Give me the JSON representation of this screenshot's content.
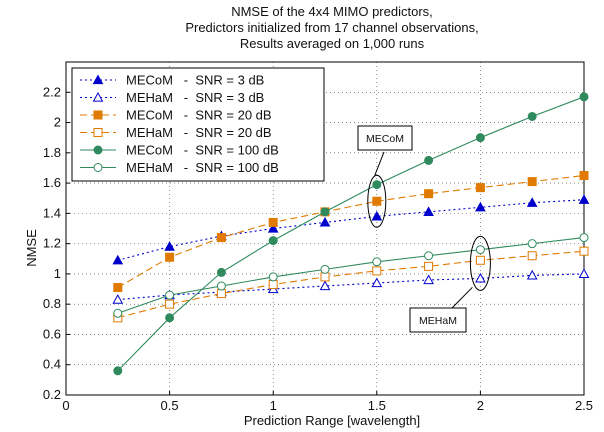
{
  "chart_data": {
    "type": "line",
    "title_lines": [
      "NMSE of the 4x4 MIMO predictors,",
      "Predictors initialized from 17 channel observations,",
      "Results averaged on 1,000 runs"
    ],
    "xlabel": "Prediction Range [wavelength]",
    "ylabel": "NMSE",
    "xlim": [
      0,
      2.5
    ],
    "ylim": [
      0.2,
      2.4
    ],
    "xticks": [
      "0",
      "0.5",
      "1",
      "1.5",
      "2",
      "2.5"
    ],
    "yticks": [
      "0.2",
      "0.4",
      "0.6",
      "0.8",
      "1",
      "1.2",
      "1.4",
      "1.6",
      "1.8",
      "2",
      "2.2"
    ],
    "grid": true,
    "legend_placement": "top-left",
    "x": [
      0.25,
      0.5,
      0.75,
      1.0,
      1.25,
      1.5,
      1.75,
      2.0,
      2.25,
      2.5
    ],
    "series": [
      {
        "name": "MECoM   -  SNR = 3 dB",
        "color": "#0000cc",
        "dash": "dotted",
        "marker": "triangle",
        "filled": true,
        "values": [
          1.09,
          1.18,
          1.25,
          1.3,
          1.34,
          1.38,
          1.41,
          1.44,
          1.47,
          1.49
        ]
      },
      {
        "name": "MEHaM   -  SNR = 3 dB",
        "color": "#0000cc",
        "dash": "dotted",
        "marker": "triangle",
        "filled": false,
        "values": [
          0.83,
          0.86,
          0.88,
          0.9,
          0.92,
          0.94,
          0.96,
          0.97,
          0.99,
          1.0
        ]
      },
      {
        "name": "MECoM   -  SNR = 20 dB",
        "color": "#e07b00",
        "dash": "dashed",
        "marker": "square",
        "filled": true,
        "values": [
          0.91,
          1.11,
          1.24,
          1.34,
          1.41,
          1.48,
          1.53,
          1.57,
          1.61,
          1.65
        ]
      },
      {
        "name": "MEHaM   -  SNR = 20 dB",
        "color": "#e07b00",
        "dash": "dashed",
        "marker": "square",
        "filled": false,
        "values": [
          0.71,
          0.8,
          0.87,
          0.93,
          0.98,
          1.02,
          1.05,
          1.09,
          1.12,
          1.15
        ]
      },
      {
        "name": "MECoM   -  SNR = 100 dB",
        "color": "#2f8a5e",
        "dash": "solid",
        "marker": "circle",
        "filled": true,
        "values": [
          0.36,
          0.71,
          1.01,
          1.22,
          1.41,
          1.59,
          1.75,
          1.9,
          2.04,
          2.17
        ]
      },
      {
        "name": "MEHaM   -  SNR = 100 dB",
        "color": "#2f8a5e",
        "dash": "solid",
        "marker": "circle",
        "filled": false,
        "values": [
          0.74,
          0.86,
          0.92,
          0.98,
          1.03,
          1.08,
          1.12,
          1.16,
          1.2,
          1.24
        ]
      }
    ],
    "annotations": [
      {
        "text": "MECoM",
        "points_to": [
          1.5,
          1.48
        ]
      },
      {
        "text": "MEHaM",
        "points_to": [
          2.0,
          1.07
        ]
      }
    ]
  }
}
